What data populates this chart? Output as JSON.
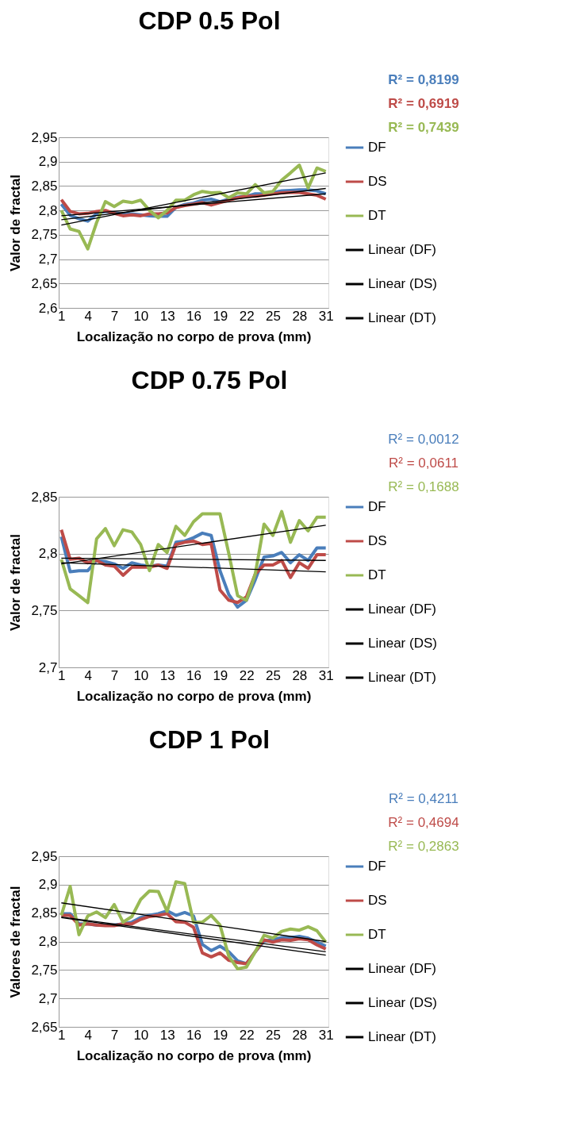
{
  "chart_data": [
    {
      "type": "line",
      "title": "CDP 0.5 Pol",
      "xlabel": "Localização no corpo de prova (mm)",
      "ylabel": "Valor de fractal",
      "categories": [
        "1",
        null,
        null,
        "4",
        null,
        null,
        "7",
        null,
        null,
        "10",
        null,
        null,
        "13",
        null,
        null,
        "16",
        null,
        null,
        "19",
        null,
        null,
        "22",
        null,
        null,
        "25",
        null,
        null,
        "28",
        null,
        null,
        "31"
      ],
      "ylim": [
        2.6,
        2.95
      ],
      "yticks": [
        {
          "value": 2.6,
          "label": "2,6"
        },
        {
          "value": 2.65,
          "label": "2,65"
        },
        {
          "value": 2.7,
          "label": "2,7"
        },
        {
          "value": 2.75,
          "label": "2,75"
        },
        {
          "value": 2.8,
          "label": "2,8"
        },
        {
          "value": 2.85,
          "label": "2,85"
        },
        {
          "value": 2.9,
          "label": "2,9"
        },
        {
          "value": 2.95,
          "label": "2,95"
        }
      ],
      "grid": "y",
      "legend": "right",
      "marker": "none",
      "annotations": [
        "R² = 0,8199",
        "R² = 0,6919",
        "R² = 0,7439"
      ],
      "series": [
        {
          "name": "DF",
          "color": "#4a7ebb",
          "values": [
            2.813,
            2.79,
            2.783,
            2.778,
            2.793,
            2.798,
            2.795,
            2.793,
            2.793,
            2.791,
            2.789,
            2.788,
            2.788,
            2.806,
            2.812,
            2.815,
            2.821,
            2.823,
            2.818,
            2.823,
            2.827,
            2.829,
            2.834,
            2.834,
            2.836,
            2.84,
            2.841,
            2.842,
            2.842,
            2.84,
            2.834
          ]
        },
        {
          "name": "DS",
          "color": "#be4b48",
          "values": [
            2.822,
            2.798,
            2.793,
            2.794,
            2.798,
            2.8,
            2.794,
            2.789,
            2.791,
            2.789,
            2.793,
            2.793,
            2.795,
            2.806,
            2.81,
            2.813,
            2.816,
            2.811,
            2.816,
            2.821,
            2.826,
            2.829,
            2.829,
            2.831,
            2.834,
            2.836,
            2.837,
            2.837,
            2.834,
            2.831,
            2.823
          ]
        },
        {
          "name": "DT",
          "color": "#98b954",
          "values": [
            2.8,
            2.762,
            2.757,
            2.721,
            2.775,
            2.818,
            2.808,
            2.819,
            2.816,
            2.821,
            2.8,
            2.785,
            2.8,
            2.821,
            2.821,
            2.832,
            2.839,
            2.836,
            2.837,
            2.826,
            2.836,
            2.834,
            2.853,
            2.836,
            2.839,
            2.862,
            2.877,
            2.893,
            2.846,
            2.887,
            2.88
          ]
        },
        {
          "name": "Linear (DF)",
          "type": "line",
          "color": "#000000",
          "x": [
            "1",
            "31"
          ],
          "values": [
            2.781,
            2.845
          ]
        },
        {
          "name": "Linear (DS)",
          "type": "line",
          "color": "#000000",
          "x": [
            "1",
            "31"
          ],
          "values": [
            2.789,
            2.834
          ]
        },
        {
          "name": "Linear (DT)",
          "type": "line",
          "color": "#000000",
          "x": [
            "1",
            "31"
          ],
          "values": [
            2.77,
            2.877
          ]
        }
      ]
    },
    {
      "type": "line",
      "title": "CDP 0.75 Pol",
      "xlabel": "Localização no corpo de prova (mm)",
      "ylabel": "Valor de fractal",
      "categories": [
        "1",
        null,
        null,
        "4",
        null,
        null,
        "7",
        null,
        null,
        "10",
        null,
        null,
        "13",
        null,
        null,
        "16",
        null,
        null,
        "19",
        null,
        null,
        "22",
        null,
        null,
        "25",
        null,
        null,
        "28",
        null,
        null,
        "31"
      ],
      "ylim": [
        2.7,
        2.85
      ],
      "yticks": [
        {
          "value": 2.7,
          "label": "2,7"
        },
        {
          "value": 2.75,
          "label": "2,75"
        },
        {
          "value": 2.8,
          "label": "2,8"
        },
        {
          "value": 2.85,
          "label": "2,85"
        }
      ],
      "grid": "y",
      "legend": "right",
      "marker": "none",
      "annotations": [
        "R² = 0,0012",
        "R² = 0,0611",
        "R² = 0,1688"
      ],
      "series": [
        {
          "name": "DF",
          "color": "#4a7ebb",
          "values": [
            2.815,
            2.784,
            2.785,
            2.785,
            2.794,
            2.793,
            2.791,
            2.787,
            2.792,
            2.79,
            2.789,
            2.79,
            2.789,
            2.81,
            2.811,
            2.814,
            2.818,
            2.816,
            2.785,
            2.764,
            2.753,
            2.759,
            2.777,
            2.797,
            2.798,
            2.801,
            2.792,
            2.799,
            2.794,
            2.805,
            2.805
          ]
        },
        {
          "name": "DS",
          "color": "#be4b48",
          "values": [
            2.821,
            2.795,
            2.796,
            2.792,
            2.794,
            2.79,
            2.789,
            2.781,
            2.788,
            2.788,
            2.788,
            2.79,
            2.787,
            2.808,
            2.81,
            2.811,
            2.808,
            2.809,
            2.768,
            2.759,
            2.757,
            2.762,
            2.782,
            2.79,
            2.79,
            2.794,
            2.779,
            2.792,
            2.787,
            2.799,
            2.799
          ]
        },
        {
          "name": "DT",
          "color": "#98b954",
          "values": [
            2.795,
            2.769,
            2.763,
            2.757,
            2.813,
            2.822,
            2.807,
            2.821,
            2.819,
            2.808,
            2.785,
            2.808,
            2.801,
            2.824,
            2.816,
            2.828,
            2.835,
            2.835,
            2.835,
            2.8,
            2.763,
            2.759,
            2.782,
            2.826,
            2.816,
            2.837,
            2.81,
            2.829,
            2.82,
            2.832,
            2.832
          ]
        },
        {
          "name": "Linear (DF)",
          "type": "line",
          "color": "#000000",
          "x": [
            "1",
            "31"
          ],
          "values": [
            2.796,
            2.794
          ]
        },
        {
          "name": "Linear (DS)",
          "type": "line",
          "color": "#000000",
          "x": [
            "1",
            "31"
          ],
          "values": [
            2.792,
            2.784
          ]
        },
        {
          "name": "Linear (DT)",
          "type": "line",
          "color": "#000000",
          "x": [
            "1",
            "31"
          ],
          "values": [
            2.791,
            2.825
          ]
        }
      ]
    },
    {
      "type": "line",
      "title": "CDP 1 Pol",
      "xlabel": "Localização no corpo de prova (mm)",
      "ylabel": "Valores de fractal",
      "categories": [
        "1",
        null,
        null,
        "4",
        null,
        null,
        "7",
        null,
        null,
        "10",
        null,
        null,
        "13",
        null,
        null,
        "16",
        null,
        null,
        "19",
        null,
        null,
        "22",
        null,
        null,
        "25",
        null,
        null,
        "28",
        null,
        null,
        "31"
      ],
      "ylim": [
        2.65,
        2.95
      ],
      "yticks": [
        {
          "value": 2.65,
          "label": "2,65"
        },
        {
          "value": 2.7,
          "label": "2,7"
        },
        {
          "value": 2.75,
          "label": "2,75"
        },
        {
          "value": 2.8,
          "label": "2,8"
        },
        {
          "value": 2.85,
          "label": "2,85"
        },
        {
          "value": 2.9,
          "label": "2,9"
        },
        {
          "value": 2.95,
          "label": "2,95"
        }
      ],
      "grid": "y",
      "legend": "right",
      "marker": "none",
      "annotations": [
        "R² = 0,4211",
        "R² = 0,4694",
        "R² = 0,2863"
      ],
      "series": [
        {
          "name": "DF",
          "color": "#4a7ebb",
          "values": [
            2.849,
            2.849,
            2.831,
            2.831,
            2.829,
            2.829,
            2.829,
            2.831,
            2.834,
            2.842,
            2.846,
            2.849,
            2.854,
            2.846,
            2.851,
            2.845,
            2.795,
            2.784,
            2.792,
            2.782,
            2.766,
            2.761,
            2.782,
            2.801,
            2.803,
            2.807,
            2.807,
            2.809,
            2.806,
            2.799,
            2.792
          ]
        },
        {
          "name": "DS",
          "color": "#be4b48",
          "values": [
            2.846,
            2.846,
            2.829,
            2.831,
            2.829,
            2.828,
            2.828,
            2.831,
            2.831,
            2.839,
            2.844,
            2.846,
            2.849,
            2.835,
            2.834,
            2.825,
            2.78,
            2.773,
            2.78,
            2.767,
            2.763,
            2.761,
            2.782,
            2.803,
            2.799,
            2.803,
            2.802,
            2.805,
            2.803,
            2.794,
            2.787
          ]
        },
        {
          "name": "DT",
          "color": "#98b954",
          "values": [
            2.846,
            2.897,
            2.812,
            2.845,
            2.852,
            2.842,
            2.865,
            2.834,
            2.844,
            2.874,
            2.889,
            2.888,
            2.853,
            2.905,
            2.902,
            2.834,
            2.834,
            2.846,
            2.829,
            2.774,
            2.752,
            2.755,
            2.782,
            2.811,
            2.806,
            2.818,
            2.822,
            2.82,
            2.826,
            2.819,
            2.799
          ]
        },
        {
          "name": "Linear (DF)",
          "type": "line",
          "color": "#000000",
          "x": [
            "1",
            "31"
          ],
          "values": [
            2.843,
            2.782
          ]
        },
        {
          "name": "Linear (DS)",
          "type": "line",
          "color": "#000000",
          "x": [
            "1",
            "31"
          ],
          "values": [
            2.842,
            2.776
          ]
        },
        {
          "name": "Linear (DT)",
          "type": "line",
          "color": "#000000",
          "x": [
            "1",
            "31"
          ],
          "values": [
            2.868,
            2.8
          ]
        }
      ]
    }
  ]
}
